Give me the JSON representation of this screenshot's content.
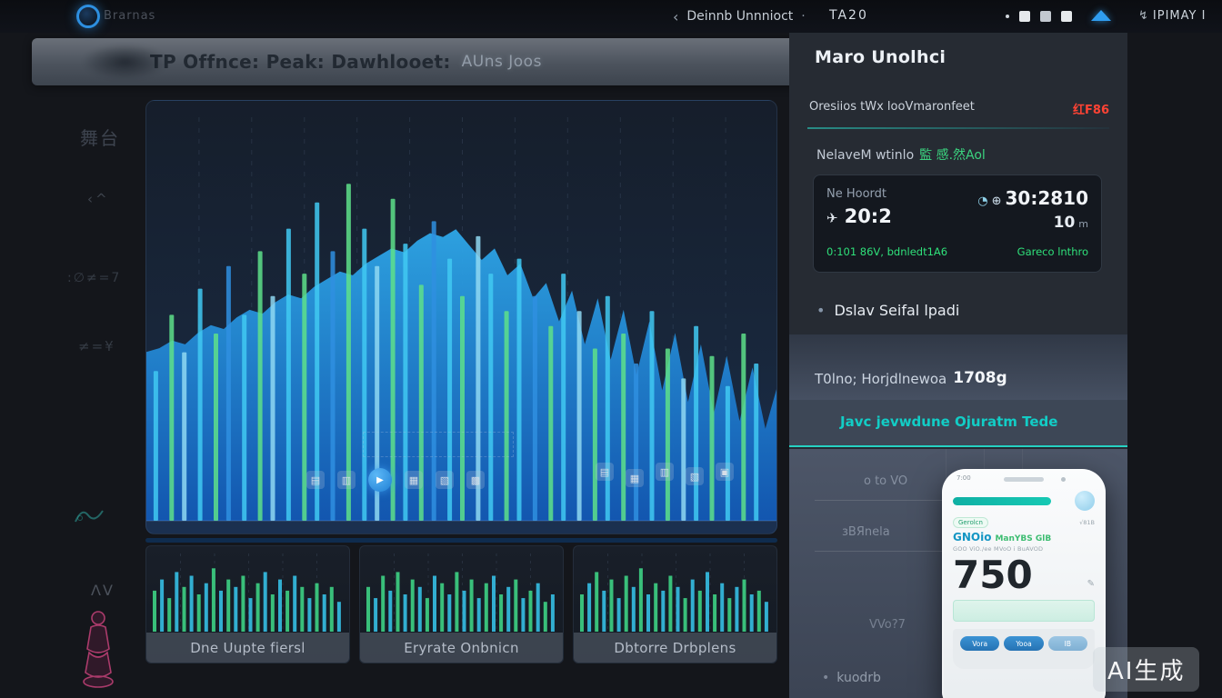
{
  "top_bar": {
    "logo_text": "Brarnas",
    "back_glyph": "‹",
    "nav_title": "Deinnb Unnnioct",
    "nav_dot": "·",
    "nav_code": "TA20",
    "right_icon": "↯",
    "right_label": "IPIMAY I"
  },
  "header": {
    "title": "TP Offnce: Peak: Dawhlooet:",
    "subtitle": "AUns Joos"
  },
  "sidebar": {
    "icons": [
      {
        "glyph": "舞台"
      },
      {
        "glyph": "‹^"
      },
      {
        "glyph": ":∅≠=7"
      },
      {
        "glyph": "≠=¥"
      },
      {
        "glyph": "ΛV"
      }
    ]
  },
  "chart_toolbar": {
    "group1": [
      "▤",
      "▥",
      "▶",
      "▦",
      "▧",
      "▩"
    ],
    "group2": [
      "▤",
      "▦",
      "▥",
      "▧",
      "▣"
    ]
  },
  "thumbnails": [
    {
      "label": "Dne Uupte fiersl"
    },
    {
      "label": "Eryrate Onbnicn"
    },
    {
      "label": "Dbtorre Drbplens"
    }
  ],
  "right_panel": {
    "title": "Maro Unolhci",
    "row1_text": "Oresiios tWx looVmaronfeet",
    "row1_badge": "红F86",
    "row2_text": "NelaveM wtinlo",
    "row2_highlight": "監 感.然Aol",
    "flight_card": {
      "from_label": "Ne Hoordt",
      "plane_icon": "✈",
      "from_time": "20:2",
      "globe_icon1": "◔",
      "globe_icon2": "⊕",
      "to_code": "30:2810",
      "to_value": "10",
      "to_unit": "m",
      "status_left": "0:101 86V, bdnledt1A6",
      "status_right": "Gareco lnthro"
    },
    "bullet_icon": "•",
    "bullet_text": "Dslav Seifal lpadi",
    "section_label": "T0lno; Horjdlnewoa",
    "section_value": "1708g",
    "link_text": "Javc jevwdune Ojuratm Tede",
    "form_bullet": "•",
    "form_labels": [
      "o to VO",
      "зВЯnela",
      "VVo?7",
      "kuodrb"
    ]
  },
  "phone": {
    "time": "7:00",
    "badge": "Gerolcn",
    "badge_right": "√81B",
    "brand": "GNOio",
    "brand2": "ManYBS GlB",
    "meta": "GOO ViO./ee MVoO i BuAVOD",
    "big_number": "750",
    "pencil_icon": "✎",
    "buttons": [
      "Vora",
      "Yooa",
      "IB"
    ]
  },
  "watermark": "AI生成",
  "chart_data": {
    "type": "area",
    "title": "",
    "axes_note": "no axis tick labels visible; values normalized 0-100",
    "grid": "vertical dashed gridlines, 11 divisions",
    "main": {
      "area": [
        44,
        45,
        47,
        46,
        49,
        51,
        50,
        53,
        55,
        54,
        57,
        59,
        58,
        61,
        63,
        65,
        64,
        67,
        69,
        71,
        70,
        73,
        75,
        74,
        76,
        72,
        68,
        71,
        64,
        67,
        58,
        62,
        52,
        60,
        46,
        58,
        42,
        55,
        38,
        52,
        34,
        49,
        31,
        46,
        28,
        43,
        26,
        40,
        24,
        36
      ],
      "area_gradient": [
        "#2ea7e8",
        "#1258b4"
      ],
      "bar_colors": [
        "#41c9f2",
        "#5ee18a",
        "#8fd8f2",
        "#2f8fe0"
      ],
      "bars": [
        [
          0.015,
          0.4,
          0
        ],
        [
          0.04,
          0.55,
          1
        ],
        [
          0.06,
          0.45,
          2
        ],
        [
          0.085,
          0.62,
          0
        ],
        [
          0.11,
          0.5,
          1
        ],
        [
          0.13,
          0.68,
          3
        ],
        [
          0.155,
          0.55,
          0
        ],
        [
          0.18,
          0.72,
          1
        ],
        [
          0.2,
          0.6,
          2
        ],
        [
          0.225,
          0.78,
          0
        ],
        [
          0.25,
          0.66,
          1
        ],
        [
          0.27,
          0.85,
          0
        ],
        [
          0.295,
          0.72,
          3
        ],
        [
          0.32,
          0.9,
          1
        ],
        [
          0.345,
          0.78,
          0
        ],
        [
          0.365,
          0.68,
          2
        ],
        [
          0.39,
          0.86,
          1
        ],
        [
          0.41,
          0.74,
          0
        ],
        [
          0.435,
          0.63,
          1
        ],
        [
          0.455,
          0.8,
          3
        ],
        [
          0.48,
          0.7,
          0
        ],
        [
          0.5,
          0.6,
          1
        ],
        [
          0.525,
          0.76,
          2
        ],
        [
          0.545,
          0.66,
          0
        ],
        [
          0.57,
          0.56,
          1
        ],
        [
          0.59,
          0.7,
          0
        ],
        [
          0.615,
          0.6,
          3
        ],
        [
          0.64,
          0.52,
          1
        ],
        [
          0.66,
          0.66,
          0
        ],
        [
          0.685,
          0.56,
          2
        ],
        [
          0.71,
          0.46,
          1
        ],
        [
          0.73,
          0.6,
          0
        ],
        [
          0.755,
          0.5,
          1
        ],
        [
          0.775,
          0.42,
          3
        ],
        [
          0.8,
          0.56,
          0
        ],
        [
          0.825,
          0.46,
          1
        ],
        [
          0.85,
          0.38,
          2
        ],
        [
          0.87,
          0.52,
          0
        ],
        [
          0.895,
          0.44,
          1
        ],
        [
          0.92,
          0.36,
          0
        ],
        [
          0.945,
          0.5,
          1
        ],
        [
          0.965,
          0.42,
          0
        ]
      ]
    },
    "thumb_colors": [
      "#3dd184",
      "#35bfe4"
    ],
    "thumbs": [
      [
        55,
        70,
        45,
        80,
        60,
        75,
        50,
        65,
        85,
        55,
        70,
        60,
        75,
        45,
        65,
        80,
        50,
        70,
        55,
        75,
        60,
        45,
        65,
        50,
        60,
        40
      ],
      [
        60,
        45,
        75,
        55,
        80,
        50,
        70,
        60,
        45,
        75,
        65,
        50,
        80,
        55,
        70,
        45,
        65,
        75,
        50,
        60,
        70,
        45,
        55,
        65,
        40,
        50
      ],
      [
        50,
        65,
        80,
        55,
        70,
        45,
        75,
        60,
        85,
        50,
        65,
        55,
        75,
        60,
        45,
        70,
        55,
        80,
        50,
        65,
        45,
        60,
        70,
        50,
        55,
        40
      ]
    ]
  }
}
